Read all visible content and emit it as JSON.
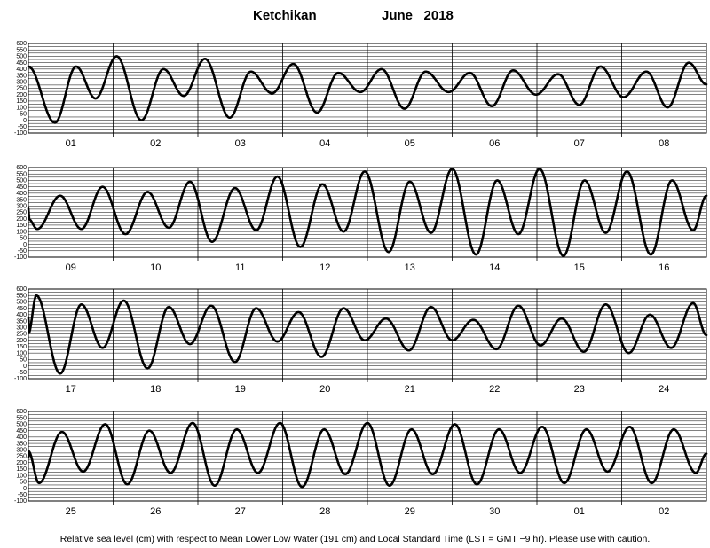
{
  "header": {
    "station": "Ketchikan",
    "month_year": "June   2018"
  },
  "footer": {
    "note": "Relative sea level (cm) with respect to Mean Lower Low Water (191 cm) and Local Standard Time (LST = GMT −9 hr). Please use with caution."
  },
  "chart_data": {
    "type": "line",
    "title": "Ketchikan June 2018",
    "ylabel": "Relative sea level (cm)",
    "ylim": [
      -100,
      600
    ],
    "yticks": [
      -100,
      -50,
      0,
      50,
      100,
      150,
      200,
      250,
      300,
      350,
      400,
      450,
      500,
      550,
      600
    ],
    "grid": true,
    "panels": [
      {
        "days": [
          "01",
          "02",
          "03",
          "04",
          "05",
          "06",
          "07",
          "08"
        ]
      },
      {
        "days": [
          "09",
          "10",
          "11",
          "12",
          "13",
          "14",
          "15",
          "16"
        ]
      },
      {
        "days": [
          "17",
          "18",
          "19",
          "20",
          "21",
          "22",
          "23",
          "24"
        ]
      },
      {
        "days": [
          "25",
          "26",
          "27",
          "28",
          "29",
          "30",
          "01",
          "02"
        ]
      }
    ],
    "series": [
      {
        "values": [
          {
            "x": "2018-06-01 00:00",
            "y": 420
          },
          {
            "x": "2018-06-01 07:30",
            "y": -20
          },
          {
            "x": "2018-06-01 13:30",
            "y": 420
          },
          {
            "x": "2018-06-01 19:00",
            "y": 170
          },
          {
            "x": "2018-06-02 01:00",
            "y": 500
          },
          {
            "x": "2018-06-02 08:00",
            "y": 0
          },
          {
            "x": "2018-06-02 14:15",
            "y": 400
          },
          {
            "x": "2018-06-02 20:00",
            "y": 190
          },
          {
            "x": "2018-06-03 02:00",
            "y": 480
          },
          {
            "x": "2018-06-03 09:00",
            "y": 20
          },
          {
            "x": "2018-06-03 15:00",
            "y": 380
          },
          {
            "x": "2018-06-03 21:00",
            "y": 210
          },
          {
            "x": "2018-06-04 03:00",
            "y": 440
          },
          {
            "x": "2018-06-04 09:45",
            "y": 60
          },
          {
            "x": "2018-06-04 15:45",
            "y": 370
          },
          {
            "x": "2018-06-04 22:00",
            "y": 220
          },
          {
            "x": "2018-06-05 04:00",
            "y": 400
          },
          {
            "x": "2018-06-05 10:30",
            "y": 90
          },
          {
            "x": "2018-06-05 16:30",
            "y": 380
          },
          {
            "x": "2018-06-05 23:00",
            "y": 220
          },
          {
            "x": "2018-06-06 05:00",
            "y": 370
          },
          {
            "x": "2018-06-06 11:15",
            "y": 110
          },
          {
            "x": "2018-06-06 17:15",
            "y": 390
          },
          {
            "x": "2018-06-06 23:45",
            "y": 200
          },
          {
            "x": "2018-06-07 06:00",
            "y": 360
          },
          {
            "x": "2018-06-07 12:00",
            "y": 120
          },
          {
            "x": "2018-06-07 18:00",
            "y": 420
          },
          {
            "x": "2018-06-08 00:30",
            "y": 180
          },
          {
            "x": "2018-06-08 07:00",
            "y": 380
          },
          {
            "x": "2018-06-08 13:00",
            "y": 100
          },
          {
            "x": "2018-06-08 19:00",
            "y": 450
          },
          {
            "x": "2018-06-08 24:00",
            "y": 280
          },
          {
            "x": "2018-06-09 00:00",
            "y": 200
          },
          {
            "x": "2018-06-09 02:30",
            "y": 120
          },
          {
            "x": "2018-06-09 09:00",
            "y": 380
          },
          {
            "x": "2018-06-09 15:00",
            "y": 120
          },
          {
            "x": "2018-06-09 21:00",
            "y": 450
          },
          {
            "x": "2018-06-10 03:30",
            "y": 80
          },
          {
            "x": "2018-06-10 09:45",
            "y": 410
          },
          {
            "x": "2018-06-10 15:45",
            "y": 130
          },
          {
            "x": "2018-06-10 21:45",
            "y": 490
          },
          {
            "x": "2018-06-11 04:00",
            "y": 20
          },
          {
            "x": "2018-06-11 10:30",
            "y": 440
          },
          {
            "x": "2018-06-11 16:30",
            "y": 110
          },
          {
            "x": "2018-06-11 22:30",
            "y": 530
          },
          {
            "x": "2018-06-12 05:00",
            "y": -20
          },
          {
            "x": "2018-06-12 11:15",
            "y": 470
          },
          {
            "x": "2018-06-12 17:15",
            "y": 100
          },
          {
            "x": "2018-06-12 23:15",
            "y": 570
          },
          {
            "x": "2018-06-13 06:00",
            "y": -60
          },
          {
            "x": "2018-06-13 12:00",
            "y": 490
          },
          {
            "x": "2018-06-13 18:00",
            "y": 90
          },
          {
            "x": "2018-06-14 00:00",
            "y": 590
          },
          {
            "x": "2018-06-14 06:45",
            "y": -80
          },
          {
            "x": "2018-06-14 12:45",
            "y": 500
          },
          {
            "x": "2018-06-14 18:45",
            "y": 80
          },
          {
            "x": "2018-06-15 00:45",
            "y": 590
          },
          {
            "x": "2018-06-15 07:30",
            "y": -90
          },
          {
            "x": "2018-06-15 13:30",
            "y": 500
          },
          {
            "x": "2018-06-15 19:30",
            "y": 90
          },
          {
            "x": "2018-06-16 01:30",
            "y": 570
          },
          {
            "x": "2018-06-16 08:15",
            "y": -80
          },
          {
            "x": "2018-06-16 14:15",
            "y": 500
          },
          {
            "x": "2018-06-16 20:15",
            "y": 110
          },
          {
            "x": "2018-06-16 24:00",
            "y": 380
          },
          {
            "x": "2018-06-17 00:00",
            "y": 250
          },
          {
            "x": "2018-06-17 02:15",
            "y": 550
          },
          {
            "x": "2018-06-17 09:00",
            "y": -60
          },
          {
            "x": "2018-06-17 15:00",
            "y": 480
          },
          {
            "x": "2018-06-17 21:00",
            "y": 140
          },
          {
            "x": "2018-06-18 03:00",
            "y": 510
          },
          {
            "x": "2018-06-18 09:45",
            "y": -20
          },
          {
            "x": "2018-06-18 15:45",
            "y": 460
          },
          {
            "x": "2018-06-18 21:45",
            "y": 170
          },
          {
            "x": "2018-06-19 03:45",
            "y": 470
          },
          {
            "x": "2018-06-19 10:30",
            "y": 30
          },
          {
            "x": "2018-06-19 16:30",
            "y": 450
          },
          {
            "x": "2018-06-19 22:30",
            "y": 190
          },
          {
            "x": "2018-06-20 04:30",
            "y": 420
          },
          {
            "x": "2018-06-20 11:00",
            "y": 70
          },
          {
            "x": "2018-06-20 17:15",
            "y": 450
          },
          {
            "x": "2018-06-20 23:15",
            "y": 200
          },
          {
            "x": "2018-06-21 05:15",
            "y": 370
          },
          {
            "x": "2018-06-21 11:45",
            "y": 120
          },
          {
            "x": "2018-06-21 18:00",
            "y": 460
          },
          {
            "x": "2018-06-22 00:00",
            "y": 200
          },
          {
            "x": "2018-06-22 06:00",
            "y": 360
          },
          {
            "x": "2018-06-22 12:30",
            "y": 130
          },
          {
            "x": "2018-06-22 18:45",
            "y": 470
          },
          {
            "x": "2018-06-23 01:00",
            "y": 160
          },
          {
            "x": "2018-06-23 07:00",
            "y": 370
          },
          {
            "x": "2018-06-23 13:15",
            "y": 110
          },
          {
            "x": "2018-06-23 19:30",
            "y": 480
          },
          {
            "x": "2018-06-24 02:00",
            "y": 100
          },
          {
            "x": "2018-06-24 08:00",
            "y": 400
          },
          {
            "x": "2018-06-24 14:00",
            "y": 140
          },
          {
            "x": "2018-06-24 20:15",
            "y": 490
          },
          {
            "x": "2018-06-24 24:00",
            "y": 240
          },
          {
            "x": "2018-06-25 00:00",
            "y": 290
          },
          {
            "x": "2018-06-25 03:00",
            "y": 40
          },
          {
            "x": "2018-06-25 09:30",
            "y": 440
          },
          {
            "x": "2018-06-25 15:30",
            "y": 130
          },
          {
            "x": "2018-06-25 21:45",
            "y": 500
          },
          {
            "x": "2018-06-26 04:00",
            "y": 30
          },
          {
            "x": "2018-06-26 10:15",
            "y": 450
          },
          {
            "x": "2018-06-26 16:15",
            "y": 120
          },
          {
            "x": "2018-06-26 22:30",
            "y": 510
          },
          {
            "x": "2018-06-27 04:45",
            "y": 20
          },
          {
            "x": "2018-06-27 11:00",
            "y": 460
          },
          {
            "x": "2018-06-27 17:00",
            "y": 120
          },
          {
            "x": "2018-06-27 23:15",
            "y": 510
          },
          {
            "x": "2018-06-28 05:30",
            "y": 10
          },
          {
            "x": "2018-06-28 11:45",
            "y": 460
          },
          {
            "x": "2018-06-28 17:45",
            "y": 110
          },
          {
            "x": "2018-06-29 00:00",
            "y": 510
          },
          {
            "x": "2018-06-29 06:15",
            "y": 20
          },
          {
            "x": "2018-06-29 12:30",
            "y": 460
          },
          {
            "x": "2018-06-29 18:30",
            "y": 110
          },
          {
            "x": "2018-06-30 00:45",
            "y": 500
          },
          {
            "x": "2018-06-30 07:00",
            "y": 30
          },
          {
            "x": "2018-06-30 13:15",
            "y": 460
          },
          {
            "x": "2018-06-30 19:15",
            "y": 120
          },
          {
            "x": "2018-07-01 01:30",
            "y": 480
          },
          {
            "x": "2018-07-01 07:45",
            "y": 40
          },
          {
            "x": "2018-07-01 14:00",
            "y": 460
          },
          {
            "x": "2018-07-01 20:00",
            "y": 130
          },
          {
            "x": "2018-07-02 02:15",
            "y": 480
          },
          {
            "x": "2018-07-02 08:30",
            "y": 40
          },
          {
            "x": "2018-07-02 14:45",
            "y": 460
          },
          {
            "x": "2018-07-02 21:00",
            "y": 120
          },
          {
            "x": "2018-07-02 24:00",
            "y": 270
          }
        ]
      }
    ]
  }
}
